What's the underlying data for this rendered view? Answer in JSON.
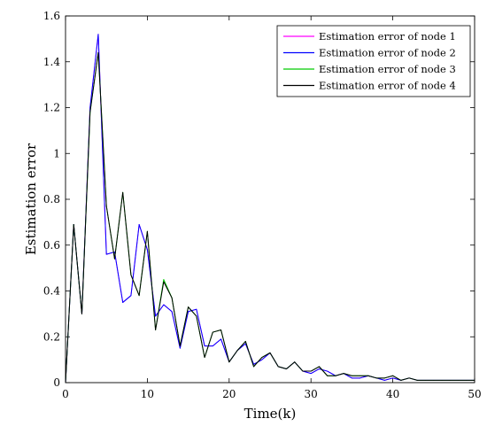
{
  "chart_data": {
    "type": "line",
    "xlabel": "Time(k)",
    "ylabel": "Estimation error",
    "xlim": [
      0,
      50
    ],
    "ylim": [
      0,
      1.6
    ],
    "x_ticks": [
      0,
      10,
      20,
      30,
      40,
      50
    ],
    "y_ticks": [
      0,
      0.2,
      0.4,
      0.6,
      0.8,
      1,
      1.2,
      1.4,
      1.6
    ],
    "legend_position": "top-right",
    "grid": false,
    "x": [
      0,
      1,
      2,
      3,
      4,
      5,
      6,
      7,
      8,
      9,
      10,
      11,
      12,
      13,
      14,
      15,
      16,
      17,
      18,
      19,
      20,
      21,
      22,
      23,
      24,
      25,
      26,
      27,
      28,
      29,
      30,
      31,
      32,
      33,
      34,
      35,
      36,
      37,
      38,
      39,
      40,
      41,
      42,
      43,
      44,
      45,
      46,
      47,
      48,
      49,
      50
    ],
    "series": [
      {
        "name": "Estimation error of node 1",
        "color": "#ff00ff",
        "values": [
          0.0,
          0.69,
          0.3,
          1.2,
          1.52,
          0.56,
          0.57,
          0.35,
          0.38,
          0.69,
          0.58,
          0.29,
          0.34,
          0.31,
          0.15,
          0.31,
          0.32,
          0.16,
          0.16,
          0.19,
          0.09,
          0.14,
          0.17,
          0.08,
          0.1,
          0.13,
          0.07,
          0.06,
          0.09,
          0.05,
          0.04,
          0.06,
          0.05,
          0.03,
          0.04,
          0.02,
          0.02,
          0.03,
          0.02,
          0.01,
          0.02,
          0.01,
          0.02,
          0.01,
          0.01,
          0.01,
          0.01,
          0.01,
          0.01,
          0.01,
          0.01
        ]
      },
      {
        "name": "Estimation error of node 2",
        "color": "#0000ff",
        "values": [
          0.0,
          0.69,
          0.3,
          1.2,
          1.52,
          0.56,
          0.57,
          0.35,
          0.38,
          0.69,
          0.58,
          0.29,
          0.34,
          0.31,
          0.15,
          0.31,
          0.32,
          0.16,
          0.16,
          0.19,
          0.09,
          0.14,
          0.17,
          0.08,
          0.1,
          0.13,
          0.07,
          0.06,
          0.09,
          0.05,
          0.04,
          0.06,
          0.05,
          0.03,
          0.04,
          0.02,
          0.02,
          0.03,
          0.02,
          0.01,
          0.02,
          0.01,
          0.02,
          0.01,
          0.01,
          0.01,
          0.01,
          0.01,
          0.01,
          0.01,
          0.01
        ]
      },
      {
        "name": "Estimation error of node 3",
        "color": "#00cc00",
        "values": [
          0.0,
          0.69,
          0.3,
          1.18,
          1.44,
          0.77,
          0.54,
          0.83,
          0.47,
          0.38,
          0.66,
          0.23,
          0.45,
          0.37,
          0.16,
          0.33,
          0.29,
          0.11,
          0.22,
          0.23,
          0.09,
          0.14,
          0.18,
          0.07,
          0.11,
          0.13,
          0.07,
          0.06,
          0.09,
          0.05,
          0.05,
          0.07,
          0.03,
          0.03,
          0.04,
          0.03,
          0.03,
          0.03,
          0.02,
          0.02,
          0.03,
          0.01,
          0.02,
          0.01,
          0.01,
          0.01,
          0.01,
          0.01,
          0.01,
          0.01,
          0.01
        ]
      },
      {
        "name": "Estimation error of node 4",
        "color": "#000000",
        "values": [
          0.0,
          0.69,
          0.3,
          1.18,
          1.44,
          0.77,
          0.54,
          0.83,
          0.47,
          0.38,
          0.66,
          0.23,
          0.44,
          0.37,
          0.16,
          0.33,
          0.29,
          0.11,
          0.22,
          0.23,
          0.09,
          0.14,
          0.18,
          0.07,
          0.11,
          0.13,
          0.07,
          0.06,
          0.09,
          0.05,
          0.05,
          0.07,
          0.03,
          0.03,
          0.04,
          0.03,
          0.03,
          0.03,
          0.02,
          0.02,
          0.03,
          0.01,
          0.02,
          0.01,
          0.01,
          0.01,
          0.01,
          0.01,
          0.01,
          0.01,
          0.01
        ]
      }
    ]
  }
}
